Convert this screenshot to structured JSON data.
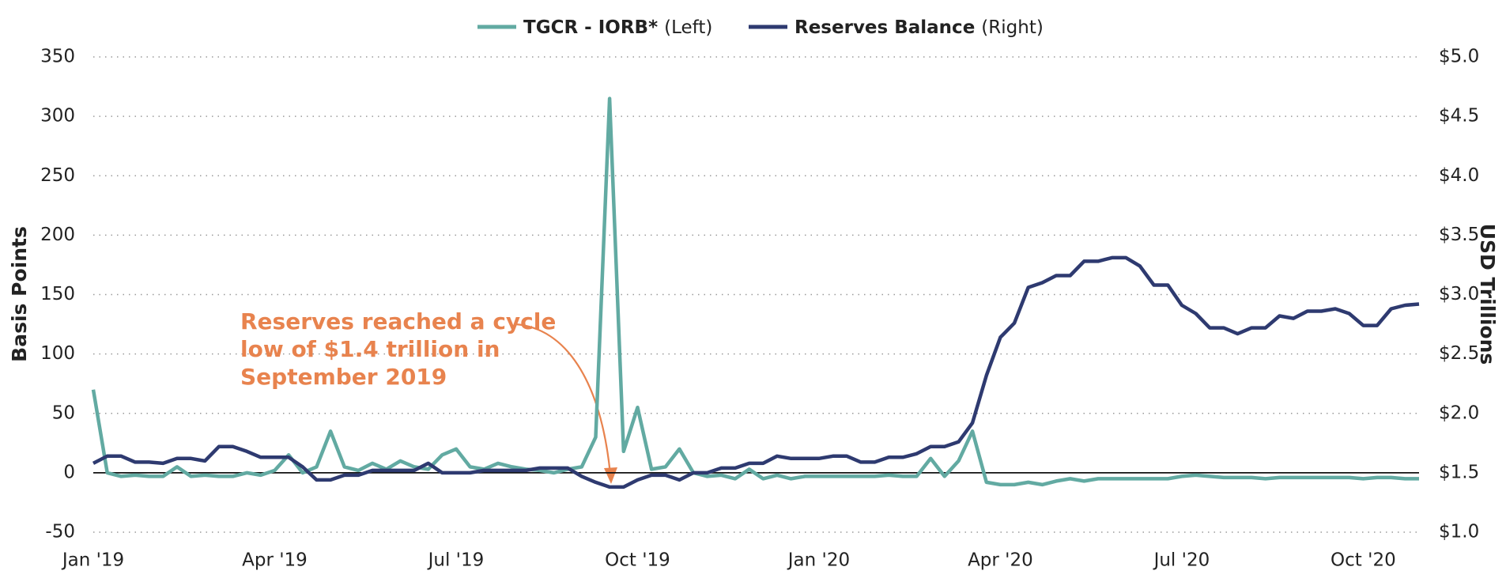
{
  "chart_data": {
    "type": "line",
    "left_axis_label": "Basis Points",
    "right_axis_label": "USD Trillions",
    "annotation": [
      "Reserves reached a cycle",
      "low of $1.4 trillion in",
      "September 2019"
    ],
    "categories": [
      "Jan '19",
      null,
      null,
      null,
      null,
      null,
      null,
      null,
      null,
      null,
      null,
      null,
      null,
      "Apr '19",
      null,
      null,
      null,
      null,
      null,
      null,
      null,
      null,
      null,
      null,
      null,
      null,
      "Jul '19",
      null,
      null,
      null,
      null,
      null,
      null,
      null,
      null,
      null,
      null,
      null,
      null,
      "Oct '19",
      null,
      null,
      null,
      null,
      null,
      null,
      null,
      null,
      null,
      null,
      null,
      null,
      "Jan '20",
      null,
      null,
      null,
      null,
      null,
      null,
      null,
      null,
      null,
      null,
      null,
      null,
      "Apr '20",
      null,
      null,
      null,
      null,
      null,
      null,
      null,
      null,
      null,
      null,
      null,
      null,
      "Jul '20",
      null,
      null,
      null,
      null,
      null,
      null,
      null,
      null,
      null,
      null,
      null,
      null,
      "Oct '20",
      null,
      null,
      null,
      null
    ],
    "series": [
      {
        "name": "TGCR - IORB*",
        "side": "(Left)",
        "color": "#62aaa2",
        "axis": "y",
        "values": [
          70,
          0,
          -3,
          -2,
          -3,
          -3,
          5,
          -3,
          -2,
          -3,
          -3,
          0,
          -2,
          2,
          15,
          0,
          5,
          35,
          5,
          2,
          8,
          3,
          10,
          5,
          3,
          15,
          20,
          5,
          3,
          8,
          5,
          3,
          2,
          0,
          3,
          5,
          30,
          315,
          18,
          55,
          3,
          5,
          20,
          0,
          -3,
          -2,
          -5,
          3,
          -5,
          -2,
          -5,
          -3,
          -3,
          -3,
          -3,
          -3,
          -3,
          -2,
          -3,
          -3,
          12,
          -3,
          10,
          35,
          -8,
          -10,
          -10,
          -8,
          -10,
          -7,
          -5,
          -7,
          -5,
          -5,
          -5,
          -5,
          -5,
          -5,
          -3,
          -2,
          -3,
          -4,
          -4,
          -4,
          -5,
          -4,
          -4,
          -4,
          -4,
          -4,
          -4,
          -5,
          -4,
          -4,
          -5,
          -5
        ]
      },
      {
        "name": "Reserves Balance",
        "side": "(Right)",
        "color": "#2e3a70",
        "axis": "y2",
        "values": [
          1.58,
          1.64,
          1.64,
          1.59,
          1.59,
          1.58,
          1.62,
          1.62,
          1.6,
          1.72,
          1.72,
          1.68,
          1.63,
          1.63,
          1.63,
          1.55,
          1.44,
          1.44,
          1.48,
          1.48,
          1.52,
          1.52,
          1.52,
          1.52,
          1.58,
          1.5,
          1.5,
          1.5,
          1.52,
          1.52,
          1.52,
          1.52,
          1.54,
          1.54,
          1.54,
          1.47,
          1.42,
          1.38,
          1.38,
          1.44,
          1.48,
          1.48,
          1.44,
          1.5,
          1.5,
          1.54,
          1.54,
          1.58,
          1.58,
          1.64,
          1.62,
          1.62,
          1.62,
          1.64,
          1.64,
          1.59,
          1.59,
          1.63,
          1.63,
          1.66,
          1.72,
          1.72,
          1.76,
          1.92,
          2.32,
          2.64,
          2.76,
          3.06,
          3.1,
          3.16,
          3.16,
          3.28,
          3.28,
          3.31,
          3.31,
          3.24,
          3.08,
          3.08,
          2.91,
          2.84,
          2.72,
          2.72,
          2.67,
          2.72,
          2.72,
          2.82,
          2.8,
          2.86,
          2.86,
          2.88,
          2.84,
          2.74,
          2.74,
          2.88,
          2.91,
          2.92
        ]
      }
    ],
    "ylim": [
      -50,
      350
    ],
    "yticks": [
      -50,
      0,
      50,
      100,
      150,
      200,
      250,
      300,
      350
    ],
    "y2lim": [
      1.0,
      5.0
    ],
    "y2ticks": [
      {
        "value": 1.0,
        "label": "$1.0"
      },
      {
        "value": 1.5,
        "label": "$1.5"
      },
      {
        "value": 2.0,
        "label": "$2.0"
      },
      {
        "value": 2.5,
        "label": "$2.5"
      },
      {
        "value": 3.0,
        "label": "$3.0"
      },
      {
        "value": 3.5,
        "label": "$3.5"
      },
      {
        "value": 4.0,
        "label": "$4.0"
      },
      {
        "value": 4.5,
        "label": "$4.5"
      },
      {
        "value": 5.0,
        "label": "$5.0"
      }
    ],
    "grid": true
  }
}
